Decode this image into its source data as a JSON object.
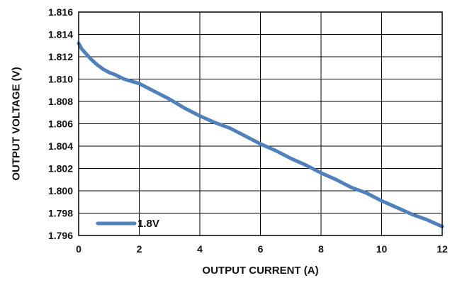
{
  "chart_data": {
    "type": "line",
    "title": "",
    "xlabel": "OUTPUT CURRENT (A)",
    "ylabel": "OUTPUT VOLTAGE (V)",
    "xlim": [
      0,
      12
    ],
    "ylim": [
      1.796,
      1.816
    ],
    "x_ticks": [
      0,
      2,
      4,
      6,
      8,
      10,
      12
    ],
    "y_ticks": [
      1.796,
      1.798,
      1.8,
      1.802,
      1.804,
      1.806,
      1.808,
      1.81,
      1.812,
      1.814,
      1.816
    ],
    "x_tick_labels": [
      "0",
      "2",
      "4",
      "6",
      "8",
      "10",
      "12"
    ],
    "y_tick_labels": [
      "1.796",
      "1.798",
      "1.800",
      "1.802",
      "1.804",
      "1.806",
      "1.808",
      "1.810",
      "1.812",
      "1.814",
      "1.816"
    ],
    "grid": true,
    "legend_position": "bottom-left",
    "series": [
      {
        "name": "1.8V",
        "color": "#4F81BD",
        "x": [
          0,
          0.1,
          0.2,
          0.4,
          0.6,
          0.8,
          1.0,
          1.2,
          1.5,
          2.0,
          2.5,
          3.0,
          3.5,
          4.0,
          4.5,
          5.0,
          5.5,
          6.0,
          6.5,
          7.0,
          7.5,
          8.0,
          8.5,
          9.0,
          9.5,
          10.0,
          10.5,
          11.0,
          11.5,
          12.0
        ],
        "y": [
          1.8132,
          1.8127,
          1.8124,
          1.8118,
          1.8113,
          1.8109,
          1.8106,
          1.8104,
          1.81,
          1.8096,
          1.8089,
          1.8082,
          1.8074,
          1.8067,
          1.8061,
          1.8056,
          1.8049,
          1.8042,
          1.8036,
          1.8029,
          1.8023,
          1.8016,
          1.801,
          1.8003,
          1.7998,
          1.7991,
          1.7985,
          1.7979,
          1.7974,
          1.7968
        ]
      }
    ]
  }
}
